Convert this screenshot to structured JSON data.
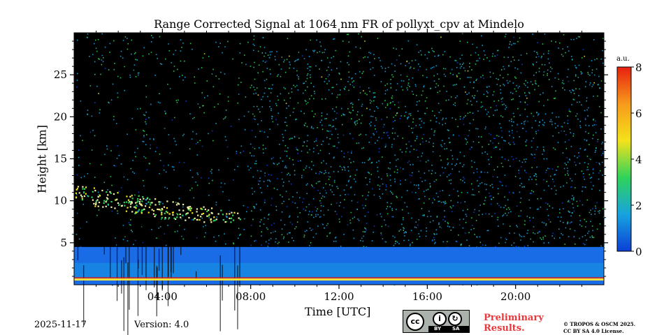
{
  "chart_data": {
    "type": "heatmap",
    "title": "Range Corrected Signal at 1064 nm FR of pollyxt_cpv at Mindelo",
    "xlabel": "Time [UTC]",
    "ylabel": "Height [km]",
    "xlim_hours": [
      0,
      24
    ],
    "ylim_km": [
      0,
      30
    ],
    "xticks": [
      {
        "value": 4,
        "label": "04:00"
      },
      {
        "value": 8,
        "label": "08:00"
      },
      {
        "value": 12,
        "label": "12:00"
      },
      {
        "value": 16,
        "label": "16:00"
      },
      {
        "value": 20,
        "label": "20:00"
      }
    ],
    "yticks": [
      {
        "value": 5,
        "label": "5"
      },
      {
        "value": 10,
        "label": "10"
      },
      {
        "value": 15,
        "label": "15"
      },
      {
        "value": 20,
        "label": "20"
      },
      {
        "value": 25,
        "label": "25"
      }
    ],
    "colorbar": {
      "unit": "a.u.",
      "range": [
        0,
        8
      ],
      "ticks": [
        {
          "value": 0,
          "label": "0"
        },
        {
          "value": 2,
          "label": "2"
        },
        {
          "value": 4,
          "label": "4"
        },
        {
          "value": 6,
          "label": "6"
        },
        {
          "value": 8,
          "label": "8"
        }
      ],
      "colors": [
        "#0b3fd6",
        "#17a3e0",
        "#2fd35a",
        "#f4e21a",
        "#f79a1b",
        "#e8200f"
      ]
    },
    "features": [
      {
        "name": "boundary layer aerosol",
        "height_top_km": 4.5,
        "time_range_hours": [
          0,
          24
        ]
      },
      {
        "name": "cirrus cloud",
        "height_range_km": [
          7.5,
          12
        ],
        "time_range_hours": [
          0,
          7.5
        ]
      },
      {
        "name": "surface return",
        "height_km": 0.5,
        "time_range_hours": [
          0,
          24
        ]
      }
    ]
  },
  "footer": {
    "date": "2025-11-17",
    "version": "Version: 4.0",
    "preliminary_line1": "Preliminary",
    "preliminary_line2": "Results.",
    "copyright_line1": "© TROPOS & OSCM 2025.",
    "copyright_line2": "CC BY SA 4.0 License.",
    "license_badge": {
      "cc": "cc",
      "by": "BY",
      "sa": "SA"
    }
  }
}
